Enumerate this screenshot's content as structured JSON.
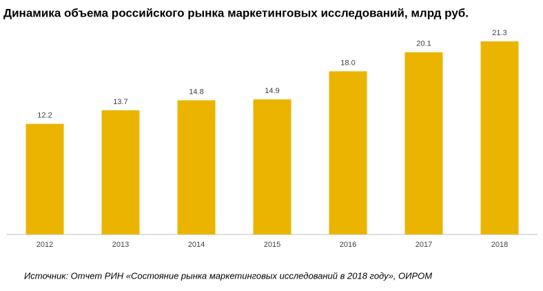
{
  "chart_data": {
    "type": "bar",
    "title": "Динамика объема российского рынка маркетинговых исследований, млрд руб.",
    "categories": [
      "2012",
      "2013",
      "2014",
      "2015",
      "2016",
      "2017",
      "2018"
    ],
    "values": [
      12.2,
      13.7,
      14.8,
      14.9,
      18.0,
      20.1,
      21.3
    ],
    "value_labels": [
      "12.2",
      "13.7",
      "14.8",
      "14.9",
      "18.0",
      "20.1",
      "21.3"
    ],
    "color": "#ebb400",
    "source": "Источник: Отчет РИН «Состояние рынка маркетинговых исследований в 2018 году», ОИРОМ"
  }
}
